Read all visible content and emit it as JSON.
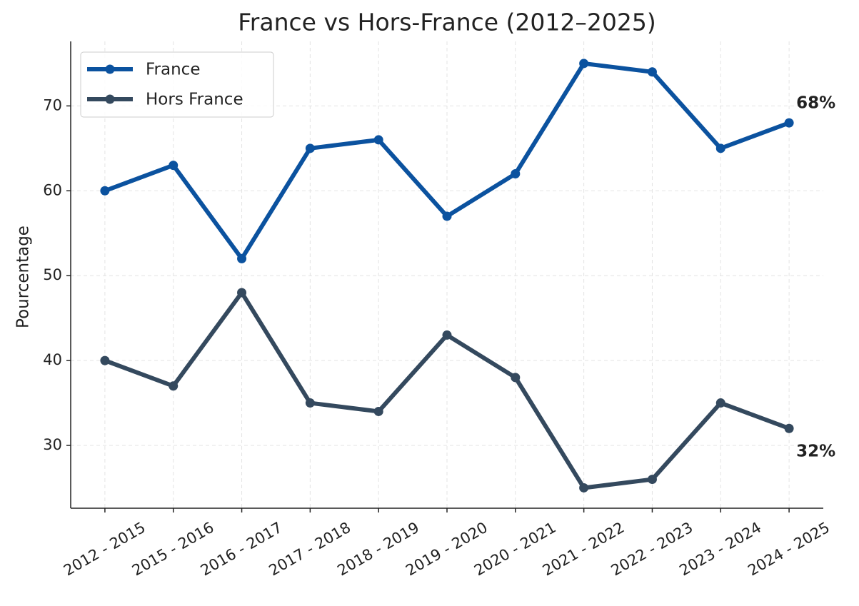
{
  "chart_data": {
    "type": "line",
    "title": "France vs Hors-France (2012–2025)",
    "y_label": "Pourcentage",
    "categories": [
      "2012 - 2015",
      "2015 - 2016",
      "2016 - 2017",
      "2017 - 2018",
      "2018 - 2019",
      "2019 - 2020",
      "2020 - 2021",
      "2021 - 2022",
      "2022 - 2023",
      "2023 - 2024",
      "2024 - 2025"
    ],
    "series": [
      {
        "name": "France",
        "color": "#0b529f",
        "values": [
          60,
          63,
          52,
          65,
          66,
          57,
          62,
          75,
          74,
          65,
          68
        ],
        "value_labels": [
          null,
          null,
          null,
          null,
          null,
          null,
          null,
          null,
          null,
          null,
          "68%"
        ]
      },
      {
        "name": "Hors France",
        "color": "#34495e",
        "values": [
          40,
          37,
          48,
          35,
          34,
          43,
          38,
          25,
          26,
          35,
          32
        ],
        "value_labels": [
          null,
          null,
          null,
          null,
          null,
          null,
          null,
          null,
          null,
          null,
          "32%"
        ]
      }
    ],
    "ylim": [
      22.6,
      77.6
    ],
    "yticks": [
      30,
      40,
      50,
      60,
      70
    ],
    "grid": true,
    "legend": "upper-left"
  }
}
